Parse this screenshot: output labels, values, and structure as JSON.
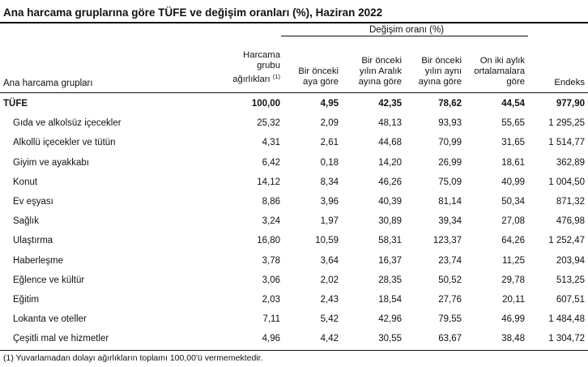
{
  "title": "Ana harcama gruplarına göre TÜFE ve değişim oranları (%), Haziran 2022",
  "header": {
    "group_label": "Değişim oranı (%)",
    "row_label": "Ana harcama grupları",
    "weight_line1": "Harcama",
    "weight_line2": "grubu",
    "weight_line3": "ağırlıkları",
    "weight_note": "(1)",
    "col_monthly_1": "Bir önceki",
    "col_monthly_2": "aya göre",
    "col_dec_1": "Bir önceki",
    "col_dec_2": "yılın Aralık",
    "col_dec_3": "ayına göre",
    "col_year_1": "Bir önceki",
    "col_year_2": "yılın aynı",
    "col_year_3": "ayına göre",
    "col_avg_1": "On iki aylık",
    "col_avg_2": "ortalamalara",
    "col_avg_3": "göre",
    "col_index": "Endeks"
  },
  "rows": [
    {
      "name": "TÜFE",
      "weight": "100,00",
      "monthly": "4,95",
      "dec": "42,35",
      "year": "78,62",
      "avg": "44,54",
      "index": "977,90"
    },
    {
      "name": "Gıda ve alkolsüz içecekler",
      "weight": "25,32",
      "monthly": "2,09",
      "dec": "48,13",
      "year": "93,93",
      "avg": "55,65",
      "index": "1 295,25"
    },
    {
      "name": "Alkollü içecekler ve tütün",
      "weight": "4,31",
      "monthly": "2,61",
      "dec": "44,68",
      "year": "70,99",
      "avg": "31,65",
      "index": "1 514,77"
    },
    {
      "name": "Giyim ve ayakkabı",
      "weight": "6,42",
      "monthly": "0,18",
      "dec": "14,20",
      "year": "26,99",
      "avg": "18,61",
      "index": "362,89"
    },
    {
      "name": "Konut",
      "weight": "14,12",
      "monthly": "8,34",
      "dec": "46,26",
      "year": "75,09",
      "avg": "40,99",
      "index": "1 004,50"
    },
    {
      "name": "Ev eşyası",
      "weight": "8,86",
      "monthly": "3,96",
      "dec": "40,39",
      "year": "81,14",
      "avg": "50,34",
      "index": "871,32"
    },
    {
      "name": "Sağlık",
      "weight": "3,24",
      "monthly": "1,97",
      "dec": "30,89",
      "year": "39,34",
      "avg": "27,08",
      "index": "476,98"
    },
    {
      "name": "Ulaştırma",
      "weight": "16,80",
      "monthly": "10,59",
      "dec": "58,31",
      "year": "123,37",
      "avg": "64,26",
      "index": "1 252,47"
    },
    {
      "name": "Haberleşme",
      "weight": "3,78",
      "monthly": "3,64",
      "dec": "16,37",
      "year": "23,74",
      "avg": "11,25",
      "index": "203,94"
    },
    {
      "name": "Eğlence ve kültür",
      "weight": "3,06",
      "monthly": "2,02",
      "dec": "28,35",
      "year": "50,52",
      "avg": "29,78",
      "index": "513,25"
    },
    {
      "name": "Eğitim",
      "weight": "2,03",
      "monthly": "2,43",
      "dec": "18,54",
      "year": "27,76",
      "avg": "20,11",
      "index": "607,51"
    },
    {
      "name": "Lokanta ve oteller",
      "weight": "7,11",
      "monthly": "5,42",
      "dec": "42,96",
      "year": "79,55",
      "avg": "46,99",
      "index": "1 484,48"
    },
    {
      "name": "Çeşitli mal ve hizmetler",
      "weight": "4,96",
      "monthly": "4,42",
      "dec": "30,55",
      "year": "63,67",
      "avg": "38,48",
      "index": "1 304,72"
    }
  ],
  "footnote": "(1) Yuvarlamadan dolayı ağırlıkların toplamı 100,00'ü vermemektedir."
}
